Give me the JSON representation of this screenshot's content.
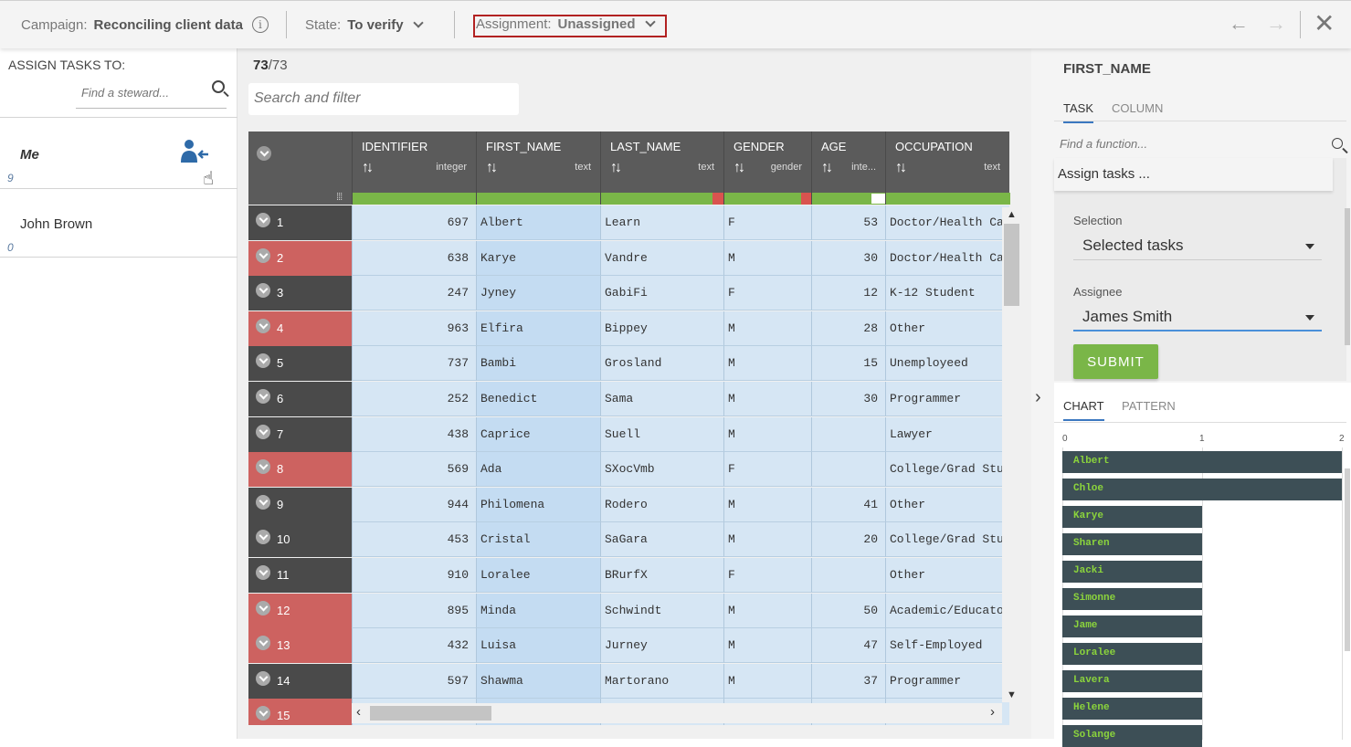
{
  "header": {
    "campaign_label": "Campaign:",
    "campaign_value": "Reconciling client data",
    "state_label": "State:",
    "state_value": "To verify",
    "assignment_label": "Assignment:",
    "assignment_value": "Unassigned",
    "back_arrow": "←",
    "forward_arrow": "→",
    "close": "✕"
  },
  "assign": {
    "title": "ASSIGN TASKS TO:",
    "search_placeholder": "Find a steward...",
    "stewards": [
      {
        "name": "Me",
        "count": "9"
      },
      {
        "name": "John Brown",
        "count": "0"
      }
    ]
  },
  "grid": {
    "count_selected": "73",
    "count_total": "/73",
    "filter_placeholder": "Search and filter",
    "columns": [
      {
        "name": "IDENTIFIER",
        "type": "integer",
        "quality_valid": 1.0
      },
      {
        "name": "FIRST_NAME",
        "type": "text",
        "quality_valid": 1.0
      },
      {
        "name": "LAST_NAME",
        "type": "text",
        "quality_valid": 0.9
      },
      {
        "name": "GENDER",
        "type": "gender",
        "quality_valid": 0.89
      },
      {
        "name": "AGE",
        "type": "inte...",
        "quality_valid": 0.81
      },
      {
        "name": "OCCUPATION",
        "type": "text",
        "quality_valid": 1.0
      }
    ],
    "rows": [
      {
        "n": "1",
        "status": "dark",
        "id": "697",
        "first": "Albert",
        "last": "Learn",
        "gender": "F",
        "age": "53",
        "occ": "Doctor/Health Ca..."
      },
      {
        "n": "2",
        "status": "red",
        "id": "638",
        "first": "Karye",
        "last": "Vandre",
        "gender": "M",
        "age": "30",
        "occ": "Doctor/Health Ca..."
      },
      {
        "n": "3",
        "status": "dark",
        "id": "247",
        "first": "Jyney",
        "last": "GabiFi",
        "gender": "F",
        "age": "12",
        "occ": "K-12 Student"
      },
      {
        "n": "4",
        "status": "red",
        "id": "963",
        "first": "Elfira",
        "last": "Bippey",
        "gender": "M",
        "age": "28",
        "occ": "Other"
      },
      {
        "n": "5",
        "status": "dark",
        "id": "737",
        "first": "Bambi",
        "last": "Grosland",
        "gender": "M",
        "age": "15",
        "occ": "Unemployeed"
      },
      {
        "n": "6",
        "status": "dark",
        "id": "252",
        "first": "Benedict",
        "last": "Sama",
        "gender": "M",
        "age": "30",
        "occ": "Programmer"
      },
      {
        "n": "7",
        "status": "dark",
        "id": "438",
        "first": "Caprice",
        "last": "Suell",
        "gender": "M",
        "age": "",
        "occ": "Lawyer"
      },
      {
        "n": "8",
        "status": "red",
        "id": "569",
        "first": "Ada",
        "last": "SXocVmb",
        "gender": "F",
        "age": "",
        "occ": "College/Grad Stu..."
      },
      {
        "n": "9",
        "status": "dark",
        "id": "944",
        "first": "Philomena",
        "last": "Rodero",
        "gender": "M",
        "age": "41",
        "occ": "Other"
      },
      {
        "n": "10",
        "status": "dark",
        "id": "453",
        "first": "Cristal",
        "last": "SaGara",
        "gender": "M",
        "age": "20",
        "occ": "College/Grad Stu..."
      },
      {
        "n": "11",
        "status": "dark",
        "id": "910",
        "first": "Loralee",
        "last": "BRurfX",
        "gender": "F",
        "age": "",
        "occ": "Other"
      },
      {
        "n": "12",
        "status": "red",
        "id": "895",
        "first": "Minda",
        "last": "Schwindt",
        "gender": "M",
        "age": "50",
        "occ": "Academic/Educator"
      },
      {
        "n": "13",
        "status": "red",
        "id": "432",
        "first": "Luisa",
        "last": "Jurney",
        "gender": "M",
        "age": "47",
        "occ": "Self-Employed"
      },
      {
        "n": "14",
        "status": "dark",
        "id": "597",
        "first": "Shawma",
        "last": "Martorano",
        "gender": "M",
        "age": "37",
        "occ": "Programmer"
      },
      {
        "n": "15",
        "status": "red",
        "id": "",
        "first": "",
        "last": "",
        "gender": "",
        "age": "",
        "occ": ""
      }
    ]
  },
  "sidepanel": {
    "title": "FIRST_NAME",
    "tabs": [
      "TASK",
      "COLUMN"
    ],
    "function_placeholder": "Find a function...",
    "function_title": "Assign tasks ...",
    "selection_label": "Selection",
    "selection_value": "Selected tasks",
    "assignee_label": "Assignee",
    "assignee_value": "James Smith",
    "submit_label": "SUBMIT",
    "chart_tabs": [
      "CHART",
      "PATTERN"
    ]
  },
  "chart_data": {
    "type": "bar",
    "orientation": "horizontal",
    "x_ticks": [
      "0",
      "1",
      "2"
    ],
    "xlim": [
      0,
      2
    ],
    "categories": [
      "Albert",
      "Chloe",
      "Karye",
      "Sharen",
      "Jacki",
      "Simonne",
      "Jame",
      "Loralee",
      "Lavera",
      "Helene",
      "Solange"
    ],
    "values": [
      2,
      2,
      1,
      1,
      1,
      1,
      1,
      1,
      1,
      1,
      1
    ],
    "colors": {
      "bar": "#3d4f56",
      "label": "#8bd43c"
    }
  }
}
